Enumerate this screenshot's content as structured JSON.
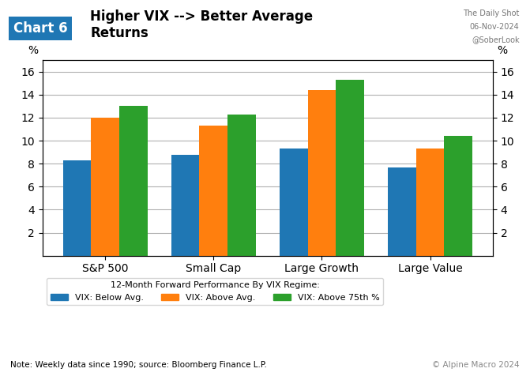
{
  "chart_data": {
    "type": "bar",
    "title": "Higher VIX --> Better Average\nReturns",
    "annotations": [
      "Chart 6",
      "The Daily Shot",
      "06-Nov-2024",
      "@SoberLook",
      "© Alpine Macro 2024",
      "Note: Weekly data since 1990; source: Bloomberg Finance L.P."
    ],
    "legend_title": "12-Month Forward Performance By VIX Regime:",
    "categories": [
      "S&P 500",
      "Small Cap",
      "Large Growth",
      "Large Value"
    ],
    "series": [
      {
        "name": "VIX: Below Avg.",
        "values": [
          8.3,
          8.8,
          9.3,
          7.7
        ]
      },
      {
        "name": "VIX: Above Avg.",
        "values": [
          12.0,
          11.3,
          14.4,
          9.3
        ]
      },
      {
        "name": "VIX: Above 75th %",
        "values": [
          13.0,
          12.3,
          15.3,
          10.4
        ]
      }
    ],
    "ylabel": "%",
    "y2label": "%",
    "ylim": [
      0,
      17
    ],
    "yticks": [
      2,
      4,
      6,
      8,
      10,
      12,
      14,
      16
    ],
    "y2lim": [
      0,
      17
    ],
    "y2ticks": [
      2,
      4,
      6,
      8,
      10,
      12,
      14,
      16
    ],
    "grid": true,
    "legend": "upper left"
  }
}
